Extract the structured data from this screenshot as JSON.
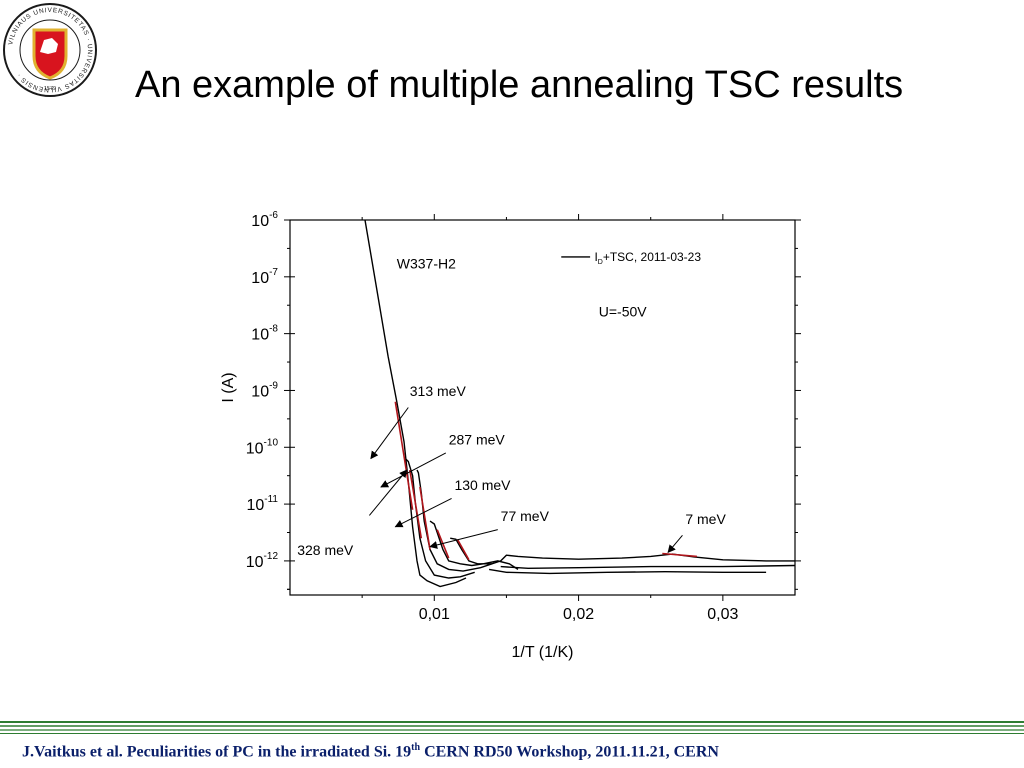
{
  "slide": {
    "title": "An example of multiple annealing TSC results",
    "footer": {
      "before": "J.Vaitkus et al. Peculiarities of PC in the irradiated Si. 19",
      "sup": "th",
      "after": " CERN RD50 Workshop, 2011.11.21, CERN"
    },
    "logo": {
      "icon": "university-seal-icon",
      "ring_text": "VILNIAUS UNIVERSITETAS · UNIVERSITAS VILNENSIS ·",
      "year": "1579",
      "colors": {
        "ring": "#1a1a1a",
        "shield": "#d8141e",
        "gold": "#e0b230"
      }
    }
  },
  "chart_data": {
    "type": "line",
    "xlabel": "1/T (1/K)",
    "ylabel": "I (A)",
    "x_range": [
      0,
      0.035
    ],
    "y_range_log10": [
      -12.6,
      -6.0
    ],
    "y_scale": "log",
    "x_ticks": [
      {
        "v": 0.01,
        "label": "0,01"
      },
      {
        "v": 0.02,
        "label": "0,02"
      },
      {
        "v": 0.03,
        "label": "0,03"
      }
    ],
    "y_ticks": [
      {
        "exp": -6,
        "base": "10",
        "sup": "-6"
      },
      {
        "exp": -7,
        "base": "10",
        "sup": "-7"
      },
      {
        "exp": -8,
        "base": "10",
        "sup": "-8"
      },
      {
        "exp": -9,
        "base": "10",
        "sup": "-9"
      },
      {
        "exp": -10,
        "base": "10",
        "sup": "-10"
      },
      {
        "exp": -11,
        "base": "10",
        "sup": "-11"
      },
      {
        "exp": -12,
        "base": "10",
        "sup": "-12"
      }
    ],
    "legend": {
      "sub": "D",
      "text": "+TSC, 2011-03-23",
      "main": "I",
      "placement": "top-right"
    },
    "annotations": {
      "sample": "W337-H2",
      "bias": "U=-50V"
    },
    "colors": {
      "curve": "#000000",
      "fit": "#b0151b"
    },
    "series": [
      {
        "points": [
          [
            0.0052,
            -6.0
          ],
          [
            0.006,
            -7.2
          ],
          [
            0.0068,
            -8.4
          ],
          [
            0.0074,
            -9.2
          ],
          [
            0.0079,
            -9.9
          ],
          [
            0.0082,
            -10.6
          ],
          [
            0.0085,
            -11.4
          ],
          [
            0.0088,
            -12.0
          ],
          [
            0.009,
            -12.25
          ],
          [
            0.0095,
            -12.35
          ],
          [
            0.0104,
            -12.45
          ],
          [
            0.0115,
            -12.38
          ],
          [
            0.0122,
            -12.3
          ]
        ]
      },
      {
        "points": [
          [
            0.008,
            -10.2
          ],
          [
            0.0082,
            -10.25
          ],
          [
            0.0085,
            -10.5
          ],
          [
            0.0087,
            -11.0
          ],
          [
            0.009,
            -11.6
          ],
          [
            0.0094,
            -12.0
          ],
          [
            0.01,
            -12.25
          ],
          [
            0.011,
            -12.3
          ],
          [
            0.0118,
            -12.28
          ],
          [
            0.0128,
            -12.2
          ]
        ]
      },
      {
        "points": [
          [
            0.0088,
            -10.4
          ],
          [
            0.0089,
            -10.45
          ],
          [
            0.0091,
            -10.8
          ],
          [
            0.0093,
            -11.3
          ],
          [
            0.0097,
            -11.8
          ],
          [
            0.0102,
            -12.05
          ],
          [
            0.011,
            -12.15
          ],
          [
            0.012,
            -12.18
          ],
          [
            0.0132,
            -12.12
          ],
          [
            0.014,
            -12.05
          ]
        ]
      },
      {
        "points": [
          [
            0.0097,
            -11.3
          ],
          [
            0.01,
            -11.35
          ],
          [
            0.0102,
            -11.5
          ],
          [
            0.0106,
            -11.8
          ],
          [
            0.011,
            -12.0
          ],
          [
            0.0118,
            -12.05
          ],
          [
            0.0126,
            -12.08
          ],
          [
            0.0134,
            -12.05
          ],
          [
            0.0144,
            -12.0
          ],
          [
            0.0152,
            -12.05
          ],
          [
            0.0158,
            -12.15
          ]
        ]
      },
      {
        "points": [
          [
            0.0111,
            -11.6
          ],
          [
            0.0115,
            -11.62
          ],
          [
            0.0119,
            -11.8
          ],
          [
            0.0124,
            -12.0
          ],
          [
            0.013,
            -12.05
          ],
          [
            0.014,
            -12.05
          ],
          [
            0.0146,
            -12.0
          ],
          [
            0.015,
            -11.9
          ],
          [
            0.0158,
            -11.92
          ],
          [
            0.0175,
            -11.95
          ],
          [
            0.02,
            -11.97
          ],
          [
            0.023,
            -11.95
          ],
          [
            0.025,
            -11.92
          ],
          [
            0.0265,
            -11.88
          ],
          [
            0.028,
            -11.93
          ],
          [
            0.03,
            -11.98
          ],
          [
            0.033,
            -12.0
          ],
          [
            0.035,
            -12.0
          ]
        ]
      },
      {
        "points": [
          [
            0.0146,
            -12.1
          ],
          [
            0.0165,
            -12.13
          ],
          [
            0.02,
            -12.12
          ],
          [
            0.025,
            -12.1
          ],
          [
            0.03,
            -12.1
          ],
          [
            0.035,
            -12.08
          ]
        ]
      },
      {
        "points": [
          [
            0.0138,
            -12.15
          ],
          [
            0.015,
            -12.2
          ],
          [
            0.018,
            -12.22
          ],
          [
            0.022,
            -12.2
          ],
          [
            0.026,
            -12.19
          ],
          [
            0.03,
            -12.2
          ],
          [
            0.033,
            -12.2
          ]
        ]
      }
    ],
    "fits": [
      {
        "points": [
          [
            0.0073,
            -9.2
          ],
          [
            0.0085,
            -11.1
          ]
        ]
      },
      {
        "points": [
          [
            0.0083,
            -10.4
          ],
          [
            0.0091,
            -11.6
          ]
        ]
      },
      {
        "points": [
          [
            0.009,
            -10.7
          ],
          [
            0.0097,
            -11.8
          ]
        ]
      },
      {
        "points": [
          [
            0.0102,
            -11.45
          ],
          [
            0.011,
            -11.95
          ]
        ]
      },
      {
        "points": [
          [
            0.0116,
            -11.62
          ],
          [
            0.0124,
            -11.98
          ]
        ]
      },
      {
        "points": [
          [
            0.0258,
            -11.87
          ],
          [
            0.0282,
            -11.92
          ]
        ]
      }
    ],
    "labels": [
      {
        "text": "313 meV",
        "at": [
          0.0083,
          -9.1
        ]
      },
      {
        "text": "287 meV",
        "at": [
          0.011,
          -9.95
        ]
      },
      {
        "text": "130 meV",
        "at": [
          0.0114,
          -10.75
        ]
      },
      {
        "text": "77 meV",
        "at": [
          0.0146,
          -11.3
        ]
      },
      {
        "text": "7 meV",
        "at": [
          0.0274,
          -11.35
        ]
      },
      {
        "text": "328 meV",
        "at": [
          0.0005,
          -11.9
        ]
      }
    ],
    "arrows": [
      {
        "from": [
          0.0082,
          -9.3
        ],
        "to": [
          0.0056,
          -10.2
        ]
      },
      {
        "from": [
          0.0108,
          -10.1
        ],
        "to": [
          0.0063,
          -10.7
        ]
      },
      {
        "from": [
          0.0112,
          -10.9
        ],
        "to": [
          0.0073,
          -11.4
        ]
      },
      {
        "from": [
          0.0144,
          -11.45
        ],
        "to": [
          0.0097,
          -11.75
        ]
      },
      {
        "from": [
          0.0055,
          -11.2
        ],
        "to": [
          0.0081,
          -10.4
        ]
      },
      {
        "from": [
          0.0272,
          -11.55
        ],
        "to": [
          0.0262,
          -11.85
        ]
      }
    ]
  }
}
